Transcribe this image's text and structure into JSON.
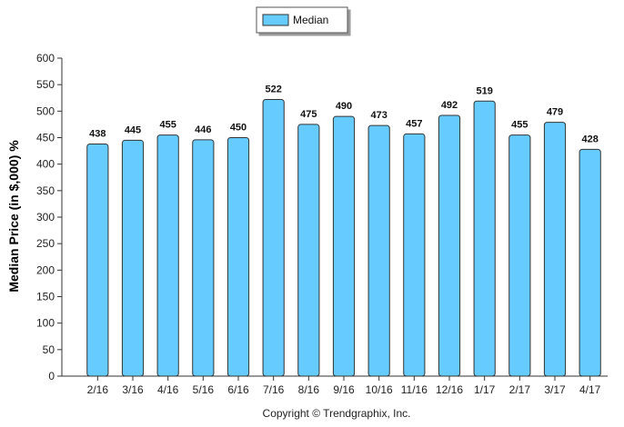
{
  "chart_data": {
    "type": "bar",
    "categories": [
      "2/16",
      "3/16",
      "4/16",
      "5/16",
      "6/16",
      "7/16",
      "8/16",
      "9/16",
      "10/16",
      "11/16",
      "12/16",
      "1/17",
      "2/17",
      "3/17",
      "4/17"
    ],
    "series": [
      {
        "name": "Median",
        "values": [
          438,
          445,
          455,
          446,
          450,
          522,
          475,
          490,
          473,
          457,
          492,
          519,
          455,
          479,
          428
        ]
      }
    ],
    "ylabel": "Median Price (in $,000) %",
    "xlabel": "",
    "ylim": [
      0,
      600
    ],
    "yticks": [
      0,
      50,
      100,
      150,
      200,
      250,
      300,
      350,
      400,
      450,
      500,
      550,
      600
    ],
    "legend": "top-center",
    "grid": false,
    "bar_color": "#66ccff",
    "bar_stroke": "#333333"
  },
  "footer": {
    "copyright": "Copyright © Trendgraphix, Inc."
  }
}
